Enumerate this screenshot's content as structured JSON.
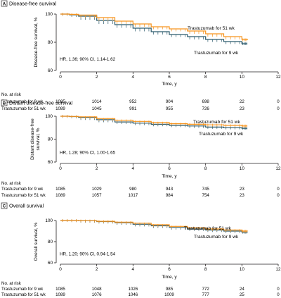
{
  "chart_data": [
    {
      "type": "line",
      "letter": "A",
      "title": "Disease-free survival",
      "xlabel": "Time, y",
      "ylabel": "Disease-free survival, %",
      "xlim": [
        0,
        12
      ],
      "ylim": [
        60,
        100
      ],
      "xticks": [
        "0",
        "2",
        "4",
        "6",
        "8",
        "10",
        "12"
      ],
      "yticks": [
        "60",
        "80",
        "100"
      ],
      "annotation": "HR, 1.36; 90% CI, 1.14-1.62",
      "series": [
        {
          "name": "Trastuzumab for 9 wk",
          "color": "#2b5a6c",
          "x": [
            0,
            0.5,
            1,
            2,
            3,
            4,
            5,
            6,
            7,
            8,
            9,
            10,
            10.3
          ],
          "y": [
            100,
            99.5,
            98.5,
            95.5,
            92.5,
            90,
            87.5,
            85.5,
            84,
            82,
            80.5,
            79,
            79
          ]
        },
        {
          "name": "Trastuzumab for 51 wk",
          "color": "#f7941d",
          "x": [
            0,
            0.5,
            1,
            2,
            3,
            4,
            5,
            6,
            7,
            8,
            9,
            10,
            10.3
          ],
          "y": [
            100,
            99.8,
            99.3,
            97.5,
            95,
            93,
            91,
            89.5,
            88,
            86,
            84,
            82,
            81.5
          ]
        }
      ],
      "risk_table": {
        "header": "No. at risk",
        "times": [
          0,
          2,
          4,
          6,
          8,
          10,
          12
        ],
        "rows": [
          {
            "label": "Trastuzumab for 9 wk",
            "values": [
              "1085",
              "1014",
              "952",
              "904",
              "698",
              "22",
              "0"
            ]
          },
          {
            "label": "Trastuzumab for 51 wk",
            "values": [
              "1089",
              "1045",
              "991",
              "955",
              "726",
              "23",
              "0"
            ]
          }
        ]
      }
    },
    {
      "type": "line",
      "letter": "B",
      "title": "Distant disease-free survival",
      "xlabel": "Time, y",
      "ylabel": "Distant disease-free survival, %",
      "xlim": [
        0,
        12
      ],
      "ylim": [
        60,
        100
      ],
      "xticks": [
        "0",
        "2",
        "4",
        "6",
        "8",
        "10",
        "12"
      ],
      "yticks": [
        "60",
        "80",
        "100"
      ],
      "annotation": "HR, 1.28; 90% CI, 1.00-1.65",
      "series": [
        {
          "name": "Trastuzumab for 9 wk",
          "color": "#2b5a6c",
          "x": [
            0,
            0.5,
            1,
            2,
            3,
            4,
            5,
            6,
            7,
            8,
            9,
            10,
            10.3
          ],
          "y": [
            100,
            99.7,
            99,
            97,
            95,
            94,
            93,
            92,
            91.5,
            90.5,
            90,
            89.5,
            89.5
          ]
        },
        {
          "name": "Trastuzumab for 51 wk",
          "color": "#f7941d",
          "x": [
            0,
            0.5,
            1,
            2,
            3,
            4,
            5,
            6,
            7,
            8,
            9,
            10,
            10.3
          ],
          "y": [
            100,
            99.8,
            99.5,
            98,
            96.5,
            95.5,
            94.5,
            93.5,
            93,
            92.5,
            92,
            91.5,
            91.5
          ]
        }
      ],
      "risk_table": {
        "header": "No. at risk",
        "times": [
          0,
          2,
          4,
          6,
          8,
          10,
          12
        ],
        "rows": [
          {
            "label": "Trastuzumab for 9 wk",
            "values": [
              "1085",
              "1029",
              "980",
              "943",
              "745",
              "23",
              "0"
            ]
          },
          {
            "label": "Trastuzumab for 51 wk",
            "values": [
              "1089",
              "1057",
              "1017",
              "984",
              "754",
              "23",
              "0"
            ]
          }
        ]
      }
    },
    {
      "type": "line",
      "letter": "C",
      "title": "Overall survival",
      "xlabel": "Time, y",
      "ylabel": "Overall survival, %",
      "xlim": [
        0,
        12
      ],
      "ylim": [
        60,
        100
      ],
      "xticks": [
        "0",
        "2",
        "4",
        "6",
        "8",
        "10",
        "12"
      ],
      "yticks": [
        "60",
        "80",
        "100"
      ],
      "annotation": "HR, 1.20; 90% CI, 0.94-1.54",
      "series": [
        {
          "name": "Trastuzumab for 9 wk",
          "color": "#2b5a6c",
          "x": [
            0,
            0.5,
            1,
            2,
            3,
            4,
            5,
            6,
            7,
            8,
            9,
            10,
            10.3
          ],
          "y": [
            100,
            100,
            99.7,
            99,
            98,
            96.5,
            95,
            93.5,
            92,
            91,
            90,
            89,
            88.8
          ]
        },
        {
          "name": "Trastuzumab for 51 wk",
          "color": "#f7941d",
          "x": [
            0,
            0.5,
            1,
            2,
            3,
            4,
            5,
            6,
            7,
            8,
            9,
            10,
            10.3
          ],
          "y": [
            100,
            100,
            99.8,
            99.3,
            98.5,
            97.5,
            96,
            94.5,
            93,
            92,
            91,
            90,
            89.7
          ]
        }
      ],
      "risk_table": {
        "header": "No. at risk",
        "times": [
          0,
          2,
          4,
          6,
          8,
          10,
          12
        ],
        "rows": [
          {
            "label": "Trastuzumab for 9 wk",
            "values": [
              "1085",
              "1048",
              "1026",
              "985",
              "772",
              "24",
              "0"
            ]
          },
          {
            "label": "Trastuzumab for 51 wk",
            "values": [
              "1089",
              "1076",
              "1046",
              "1009",
              "777",
              "25",
              "0"
            ]
          }
        ]
      }
    }
  ]
}
